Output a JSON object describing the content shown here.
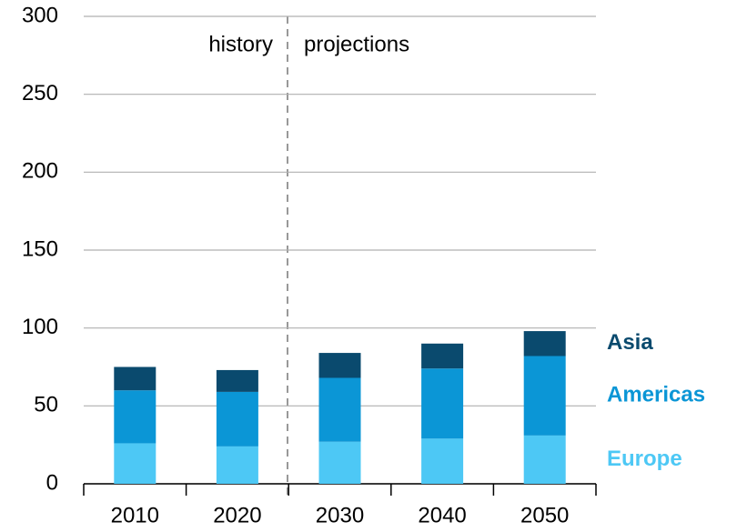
{
  "chart_data": {
    "type": "stacked_bar",
    "categories": [
      "2010",
      "2020",
      "2030",
      "2040",
      "2050"
    ],
    "series": [
      {
        "name": "Europe",
        "color": "#4dc8f5",
        "values": [
          26,
          24,
          27,
          29,
          31
        ]
      },
      {
        "name": "Americas",
        "color": "#0b96d6",
        "values": [
          34,
          35,
          41,
          45,
          51
        ]
      },
      {
        "name": "Asia",
        "color": "#0a4a6e",
        "values": [
          15,
          14,
          16,
          16,
          16
        ]
      }
    ],
    "annotations": [
      "history",
      "projections"
    ],
    "ylim": [
      0,
      300
    ],
    "yticks": [
      0,
      50,
      100,
      150,
      200,
      250,
      300
    ],
    "grid": true
  }
}
